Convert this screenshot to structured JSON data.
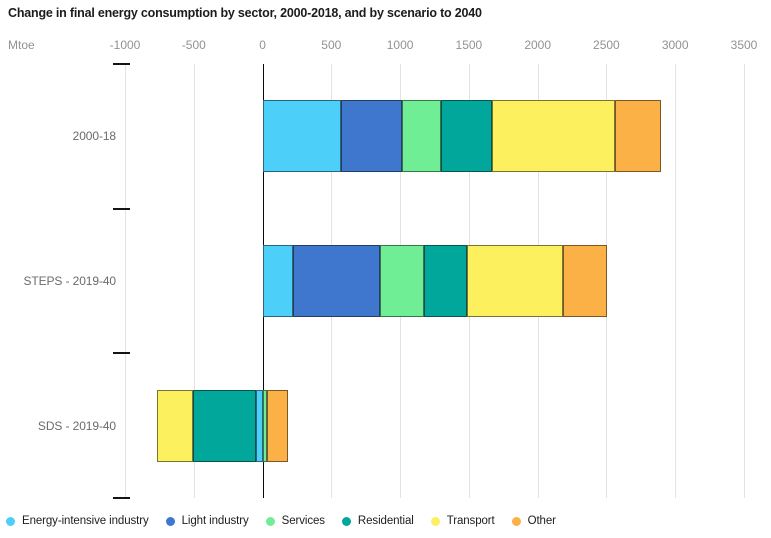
{
  "title": "Change in final energy consumption by sector, 2000-2018, and by scenario to 2040",
  "chart_data": {
    "type": "bar",
    "orientation": "horizontal",
    "stacked": true,
    "title": "Change in final energy consumption by sector, 2000-2018, and by scenario to 2040",
    "unit_label": "Mtoe",
    "categories": [
      "2000-18",
      "STEPS - 2019-40",
      "SDS - 2019-40"
    ],
    "series": [
      {
        "name": "Energy-intensive industry",
        "color": "#4CCFF9",
        "values": [
          570,
          220,
          -50
        ]
      },
      {
        "name": "Light industry",
        "color": "#4077CE",
        "values": [
          440,
          635,
          0
        ]
      },
      {
        "name": "Services",
        "color": "#70EE96",
        "values": [
          290,
          320,
          30
        ]
      },
      {
        "name": "Residential",
        "color": "#01A79A",
        "values": [
          365,
          310,
          -455
        ]
      },
      {
        "name": "Transport",
        "color": "#FDF05E",
        "values": [
          900,
          700,
          -265
        ]
      },
      {
        "name": "Other",
        "color": "#FBB146",
        "values": [
          330,
          320,
          155
        ]
      }
    ],
    "x_ticks": [
      -1000,
      -500,
      0,
      500,
      1000,
      1500,
      2000,
      2500,
      3000,
      3500
    ],
    "xlim": [
      -1000,
      3500
    ],
    "grid": true,
    "zero_line": true,
    "legend_position": "bottom",
    "colors": {
      "gridline": "#e3e3e3",
      "zero_line": "#0a0a0a",
      "axis_text": "#929292",
      "category_text": "#6b6b6b",
      "title_text": "#1c1c1c"
    }
  }
}
